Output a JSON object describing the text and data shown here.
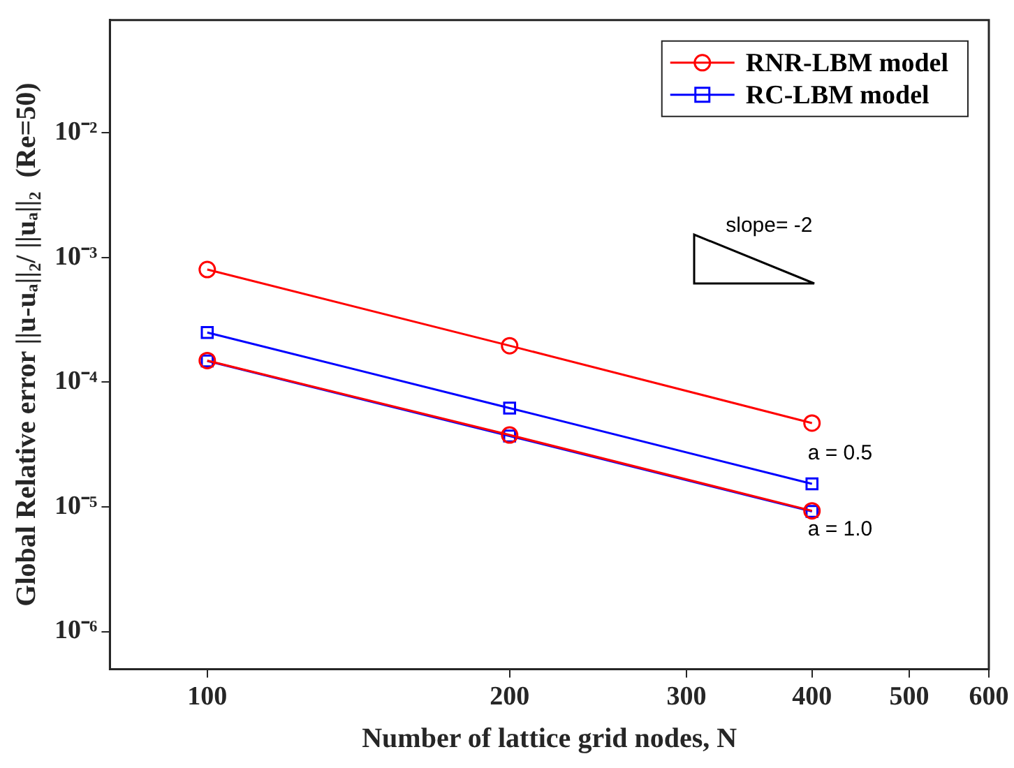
{
  "chart_data": {
    "type": "line",
    "xlabel": "Number of lattice grid nodes, N",
    "ylabel": "Global Relative error ||u-uₐ||₂/ ||uₐ||₂  (Re=50)",
    "x": [
      100,
      200,
      400
    ],
    "series": [
      {
        "name": "RNR-LBM model",
        "color": "#ff0000",
        "marker": "circle",
        "values": [
          0.0008,
          0.000196,
          4.7e-05
        ]
      },
      {
        "name": "RC-LBM model",
        "color": "#0000ff",
        "marker": "square",
        "values": [
          0.00025,
          6.2e-05,
          1.53e-05
        ]
      },
      {
        "color": "#ff0000",
        "marker": "circle",
        "values": [
          0.000149,
          3.77e-05,
          9.3e-06
        ]
      },
      {
        "color": "#0000ff",
        "marker": "square",
        "values": [
          0.000148,
          3.7e-05,
          9.2e-06
        ]
      }
    ],
    "log": "xy",
    "xlim": [
      80,
      600
    ],
    "xticks": [
      100,
      200,
      300,
      400,
      500,
      600
    ],
    "ylim": [
      5e-07,
      0.08
    ],
    "yticks": [
      {
        "value": 1e-06,
        "label": "10⁻⁶"
      },
      {
        "value": 1e-05,
        "label": "10⁻⁵"
      },
      {
        "value": 0.0001,
        "label": "10⁻⁴"
      },
      {
        "value": 0.001,
        "label": "10⁻³"
      },
      {
        "value": 0.01,
        "label": "10⁻²"
      }
    ],
    "grid": false,
    "legend": "top right",
    "line_style": "solid",
    "annotations": [
      "slope= -2",
      "a = 0.5",
      "a = 1.0"
    ]
  }
}
